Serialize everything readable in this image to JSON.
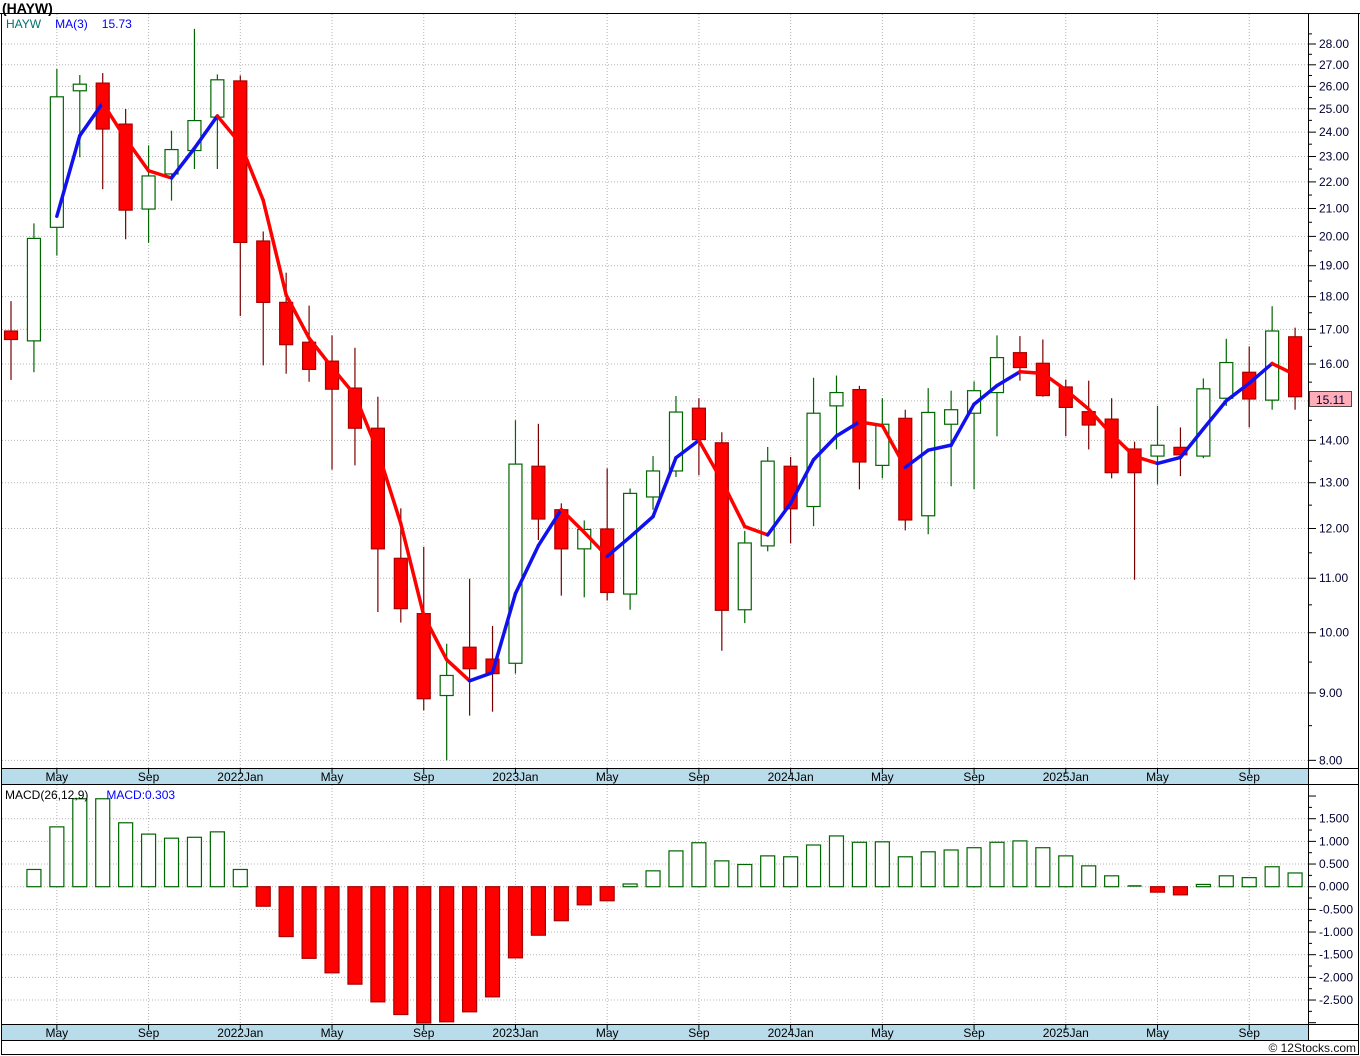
{
  "window": {
    "title": "(HAYW)"
  },
  "price_panel": {
    "legend": {
      "symbol": "HAYW",
      "ma_label": "MA(3)",
      "ma_value": "15.73"
    },
    "last_price_label": "15.11",
    "y_axis_labels": [
      "28.00",
      "27.00",
      "26.00",
      "25.00",
      "24.00",
      "23.00",
      "22.00",
      "21.00",
      "20.00",
      "19.00",
      "18.00",
      "17.00",
      "16.00",
      "15.00",
      "14.00",
      "13.00",
      "12.00",
      "11.00",
      "10.00",
      "9.00",
      "8.00"
    ]
  },
  "macd_panel": {
    "legend": {
      "name": "MACD(26,12,9)",
      "value_label": "MACD:0.303"
    },
    "y_axis_labels": [
      "1.500",
      "1.000",
      "0.500",
      "0.000",
      "-0.500",
      "-1.000",
      "-1.500",
      "-2.000",
      "-2.500"
    ]
  },
  "time_axis": {
    "labels": [
      {
        "index": 2,
        "label": "May"
      },
      {
        "index": 6,
        "label": "Sep"
      },
      {
        "index": 10,
        "label": "2022Jan"
      },
      {
        "index": 14,
        "label": "May"
      },
      {
        "index": 18,
        "label": "Sep"
      },
      {
        "index": 22,
        "label": "2023Jan"
      },
      {
        "index": 26,
        "label": "May"
      },
      {
        "index": 30,
        "label": "Sep"
      },
      {
        "index": 34,
        "label": "2024Jan"
      },
      {
        "index": 38,
        "label": "May"
      },
      {
        "index": 42,
        "label": "Sep"
      },
      {
        "index": 46,
        "label": "2025Jan"
      },
      {
        "index": 50,
        "label": "May"
      },
      {
        "index": 54,
        "label": "Sep"
      }
    ]
  },
  "footer": {
    "copyright": "© 12Stocks.com"
  },
  "colors": {
    "up_outline": "#006600",
    "up_fill": "#ffffff",
    "up_wick": "#006600",
    "down_fill": "#ff0000",
    "down_outline": "#aa0000",
    "down_wick": "#7a0000",
    "ma_rising": "#1111ee",
    "ma_falling": "#ff0000",
    "grid": "#b3b3b3",
    "axis_text": "#000033",
    "time_text": "#000000",
    "time_bar_bg": "#b9dcea",
    "frame": "#000000",
    "last_price_bg": "#ffaeb9",
    "legend_symbol": "#007070",
    "legend_value": "#0000ff"
  },
  "chart_data": [
    {
      "type": "candlestick",
      "name": "HAYW monthly candles",
      "yscale": "log",
      "ylim": [
        8,
        29.5
      ],
      "months": [
        "2021-03",
        "2021-04",
        "2021-05",
        "2021-06",
        "2021-07",
        "2021-08",
        "2021-09",
        "2021-10",
        "2021-11",
        "2021-12",
        "2022-01",
        "2022-02",
        "2022-03",
        "2022-04",
        "2022-05",
        "2022-06",
        "2022-07",
        "2022-08",
        "2022-09",
        "2022-10",
        "2022-11",
        "2022-12",
        "2023-01",
        "2023-02",
        "2023-03",
        "2023-04",
        "2023-05",
        "2023-06",
        "2023-07",
        "2023-08",
        "2023-09",
        "2023-10",
        "2023-11",
        "2023-12",
        "2024-01",
        "2024-02",
        "2024-03",
        "2024-04",
        "2024-05",
        "2024-06",
        "2024-07",
        "2024-08",
        "2024-09",
        "2024-10",
        "2024-11",
        "2024-12",
        "2025-01",
        "2025-02",
        "2025-03",
        "2025-04",
        "2025-05",
        "2025-06",
        "2025-07",
        "2025-08",
        "2025-09",
        "2025-10",
        "2025-11"
      ],
      "ohlc": [
        [
          16.95,
          17.86,
          15.56,
          16.7
        ],
        [
          16.66,
          20.46,
          15.77,
          19.93
        ],
        [
          20.32,
          26.8,
          19.34,
          25.53
        ],
        [
          25.8,
          26.52,
          22.97,
          26.1
        ],
        [
          26.15,
          26.61,
          21.72,
          24.13
        ],
        [
          24.34,
          24.99,
          19.9,
          20.94
        ],
        [
          20.98,
          23.45,
          19.78,
          22.23
        ],
        [
          22.31,
          24.06,
          21.29,
          23.28
        ],
        [
          23.24,
          28.75,
          22.5,
          24.49
        ],
        [
          24.64,
          26.55,
          22.5,
          26.3
        ],
        [
          26.25,
          26.5,
          17.4,
          19.79
        ],
        [
          19.84,
          20.17,
          15.96,
          17.82
        ],
        [
          17.82,
          18.77,
          15.73,
          16.55
        ],
        [
          16.62,
          17.72,
          15.51,
          15.85
        ],
        [
          16.08,
          16.82,
          13.3,
          15.31
        ],
        [
          15.34,
          16.46,
          13.4,
          14.3
        ],
        [
          14.3,
          15.11,
          10.37,
          11.58
        ],
        [
          11.39,
          12.43,
          10.18,
          10.43
        ],
        [
          10.34,
          11.62,
          8.73,
          8.91
        ],
        [
          8.96,
          9.81,
          8.0,
          9.28
        ],
        [
          9.75,
          10.99,
          8.65,
          9.39
        ],
        [
          9.55,
          10.12,
          8.71,
          9.31
        ],
        [
          9.48,
          14.5,
          9.31,
          13.43
        ],
        [
          13.38,
          14.41,
          11.76,
          12.2
        ],
        [
          12.4,
          12.54,
          10.67,
          11.58
        ],
        [
          11.58,
          12.17,
          10.64,
          11.98
        ],
        [
          11.99,
          13.33,
          10.58,
          10.73
        ],
        [
          10.7,
          12.87,
          10.41,
          12.76
        ],
        [
          12.68,
          13.62,
          12.4,
          13.27
        ],
        [
          13.27,
          15.13,
          13.13,
          14.71
        ],
        [
          14.81,
          15.07,
          13.17,
          14.02
        ],
        [
          13.94,
          14.2,
          9.69,
          10.4
        ],
        [
          10.41,
          11.95,
          10.17,
          11.7
        ],
        [
          11.64,
          13.84,
          11.53,
          13.5
        ],
        [
          13.38,
          13.6,
          11.69,
          12.42
        ],
        [
          12.47,
          15.62,
          12.05,
          14.68
        ],
        [
          14.87,
          15.68,
          13.78,
          15.22
        ],
        [
          15.3,
          15.4,
          12.85,
          13.48
        ],
        [
          13.4,
          15.07,
          13.1,
          14.4
        ],
        [
          14.55,
          14.77,
          11.96,
          12.18
        ],
        [
          12.27,
          15.34,
          11.88,
          14.7
        ],
        [
          14.4,
          15.27,
          12.92,
          14.77
        ],
        [
          14.68,
          15.52,
          12.85,
          15.27
        ],
        [
          15.22,
          16.82,
          14.1,
          16.18
        ],
        [
          16.32,
          16.8,
          15.54,
          15.9
        ],
        [
          16.02,
          16.7,
          15.11,
          15.14
        ],
        [
          15.37,
          15.57,
          14.1,
          14.83
        ],
        [
          14.72,
          15.54,
          13.78,
          14.38
        ],
        [
          14.53,
          15.07,
          13.1,
          13.23
        ],
        [
          13.79,
          13.97,
          10.97,
          13.23
        ],
        [
          13.62,
          14.87,
          12.96,
          13.88
        ],
        [
          13.83,
          14.32,
          13.15,
          13.65
        ],
        [
          13.62,
          15.6,
          13.57,
          15.32
        ],
        [
          15.07,
          16.72,
          14.87,
          16.04
        ],
        [
          15.77,
          16.5,
          14.32,
          15.05
        ],
        [
          15.02,
          17.7,
          14.77,
          16.95
        ],
        [
          16.78,
          17.05,
          14.77,
          15.11
        ]
      ],
      "overlay": {
        "name": "MA(3)",
        "period": 3,
        "last_value": 15.73
      }
    },
    {
      "type": "bar",
      "name": "MACD(26,12,9)",
      "last_value": 0.303,
      "ylim": [
        -3.05,
        2.2
      ],
      "values": [
        null,
        0.38,
        1.32,
        1.94,
        1.94,
        1.41,
        1.16,
        1.07,
        1.09,
        1.21,
        0.38,
        -0.43,
        -1.1,
        -1.58,
        -1.9,
        -2.15,
        -2.54,
        -2.82,
        -3.1,
        -2.98,
        -2.76,
        -2.43,
        -1.57,
        -1.07,
        -0.75,
        -0.4,
        -0.31,
        0.06,
        0.35,
        0.79,
        0.97,
        0.57,
        0.49,
        0.68,
        0.66,
        0.92,
        1.12,
        0.98,
        0.99,
        0.66,
        0.77,
        0.81,
        0.86,
        0.98,
        1.01,
        0.86,
        0.68,
        0.46,
        0.24,
        0.01,
        -0.12,
        -0.18,
        0.05,
        0.24,
        0.2,
        0.44,
        0.303
      ]
    }
  ]
}
